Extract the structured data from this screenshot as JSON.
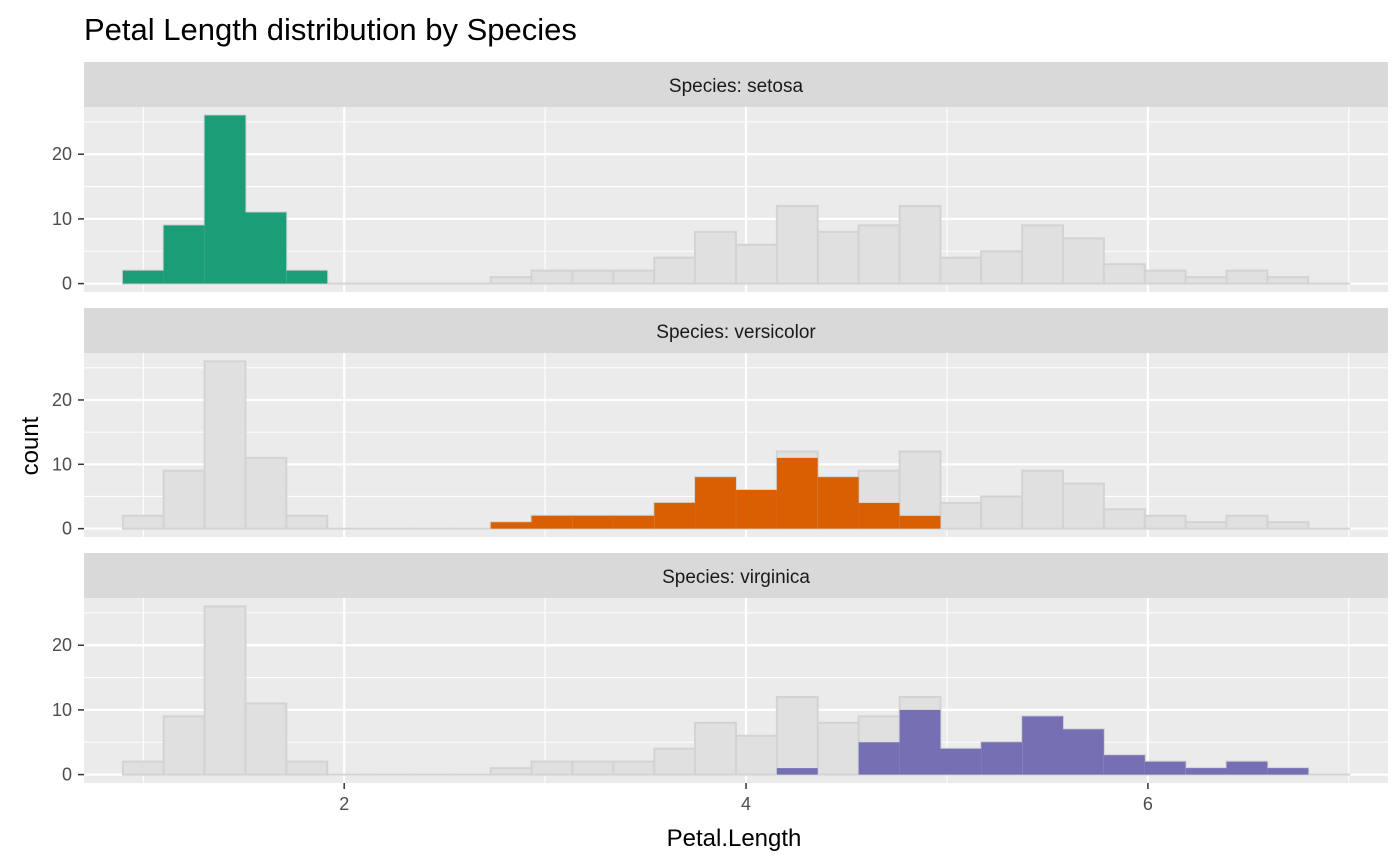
{
  "chart_data": {
    "type": "bar",
    "title": "Petal Length distribution by Species",
    "xlabel": "Petal.Length",
    "ylabel": "count",
    "xlim": [
      0.705,
      7.195
    ],
    "ylim": [
      -1.3,
      27.3
    ],
    "x_ticks": [
      2,
      4,
      6
    ],
    "y_ticks": [
      0,
      10,
      20
    ],
    "bin_width": 0.2034,
    "bin_centers": [
      1.0,
      1.203,
      1.407,
      1.61,
      1.814,
      2.017,
      2.221,
      2.424,
      2.628,
      2.831,
      3.034,
      3.238,
      3.441,
      3.645,
      3.848,
      4.052,
      4.255,
      4.459,
      4.662,
      4.866,
      5.069,
      5.272,
      5.476,
      5.679,
      5.883,
      6.086,
      6.29,
      6.493,
      6.697,
      6.9
    ],
    "background_counts": [
      2,
      9,
      26,
      11,
      2,
      0,
      0,
      0,
      0,
      1,
      2,
      2,
      2,
      4,
      8,
      6,
      12,
      8,
      9,
      12,
      4,
      5,
      9,
      7,
      3,
      2,
      1,
      2,
      1,
      0
    ],
    "background_color": "#e0e0e0",
    "background_outline": "#d3d3d3",
    "facet_prefix": "Species: ",
    "series": [
      {
        "name": "setosa",
        "color": "#1b9e77",
        "counts": [
          2,
          9,
          26,
          11,
          2,
          0,
          0,
          0,
          0,
          0,
          0,
          0,
          0,
          0,
          0,
          0,
          0,
          0,
          0,
          0,
          0,
          0,
          0,
          0,
          0,
          0,
          0,
          0,
          0,
          0
        ]
      },
      {
        "name": "versicolor",
        "color": "#d95f02",
        "counts": [
          0,
          0,
          0,
          0,
          0,
          0,
          0,
          0,
          0,
          1,
          2,
          2,
          2,
          4,
          8,
          6,
          11,
          8,
          4,
          2,
          0,
          0,
          0,
          0,
          0,
          0,
          0,
          0,
          0,
          0
        ]
      },
      {
        "name": "virginica",
        "color": "#7570b3",
        "counts": [
          0,
          0,
          0,
          0,
          0,
          0,
          0,
          0,
          0,
          0,
          0,
          0,
          0,
          0,
          0,
          0,
          1,
          0,
          5,
          10,
          4,
          5,
          9,
          7,
          3,
          2,
          1,
          2,
          1,
          0
        ]
      }
    ],
    "grid": true,
    "legend": "none"
  }
}
